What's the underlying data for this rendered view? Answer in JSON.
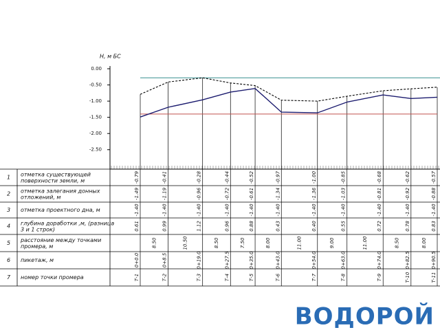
{
  "axis": {
    "label": "Н,  м БС",
    "ylim": [
      -3.1,
      0
    ],
    "yticks": [
      {
        "value": 0,
        "label": "0.00"
      },
      {
        "value": -0.5,
        "label": "-0.50"
      },
      {
        "value": -1,
        "label": "-1.00"
      },
      {
        "value": -1.5,
        "label": "-1.50"
      },
      {
        "value": -2,
        "label": "-2.00"
      },
      {
        "value": -2.5,
        "label": "-2.50"
      }
    ],
    "water_level": -0.28
  },
  "stations": [
    0,
    8.5,
    19,
    27.5,
    35,
    43,
    54,
    63,
    74,
    82.5,
    90.5
  ],
  "rows": [
    {
      "num": "1",
      "label": "отметка существующей поверхности земли, м",
      "color": "#000000",
      "values": [
        -0.79,
        -0.41,
        -0.28,
        -0.44,
        -0.52,
        -0.97,
        -1,
        -0.85,
        -0.68,
        -0.62,
        -0.57
      ],
      "value_labels": [
        "-0.79",
        "-0.41",
        "-0.28",
        "-0.44",
        "-0.52",
        "-0.97",
        "-1.00",
        "-0.85",
        "-0.68",
        "-0.62",
        "-0.57"
      ]
    },
    {
      "num": "2",
      "label": "отметка залегания донных отложений, м",
      "color": "#1a1a6e",
      "values": [
        -1.49,
        -1.19,
        -0.96,
        -0.72,
        -0.61,
        -1.34,
        -1.36,
        -1.03,
        -0.81,
        -0.92,
        -0.88
      ],
      "value_labels": [
        "-1.49",
        "-1.19",
        "-0.96",
        "-0.72",
        "-0.61",
        "-1.34",
        "-1.36",
        "-1.03",
        "-0.81",
        "-0.92",
        "-0.88"
      ]
    },
    {
      "num": "3",
      "label": "отметка проектного дна, м",
      "color": "#c0504d",
      "values": [
        -1.4,
        -1.4,
        -1.4,
        -1.4,
        -1.4,
        -1.4,
        -1.4,
        -1.4,
        -1.4,
        -1.4,
        -1.4
      ],
      "value_labels": [
        "-1.40",
        "-1.40",
        "-1.40",
        "-1.40",
        "-1.40",
        "-1.40",
        "-1.40",
        "-1.40",
        "-1.40",
        "-1.40",
        "-1.40"
      ]
    },
    {
      "num": "4",
      "label": "глубина доработки ,м, (разница 3 и 1 строк)",
      "cells": [
        "0.61",
        "0.99",
        "1.12",
        "0.96",
        "0.88",
        "0.43",
        "0.40",
        "0.55",
        "0.72",
        "0.78",
        "0.83"
      ]
    },
    {
      "num": "5",
      "label": "расстояние между точками промера, м",
      "cells": [
        "8.50",
        "10.50",
        "8.50",
        "7.50",
        "8.00",
        "11.00",
        "9.00",
        "11.00",
        "8.50",
        "8.00"
      ]
    },
    {
      "num": "6",
      "label": "пикетаж, м",
      "cells": [
        "0+0.0",
        "0+8.5",
        "0+19.0",
        "0+27.5",
        "0+35.0",
        "0+43.0",
        "0+54.0",
        "0+63.0",
        "0+74.0",
        "0+82.5",
        "0+90.5"
      ]
    },
    {
      "num": "7",
      "label": "номер точки промера",
      "cells": [
        "Т-1",
        "Т-2",
        "Т-3",
        "Т-4",
        "Т-5",
        "Т-6",
        "Т-7",
        "Т-8",
        "Т-9",
        "Т-10",
        "Т-11"
      ]
    }
  ],
  "logo": "ВОДОРОЙ"
}
